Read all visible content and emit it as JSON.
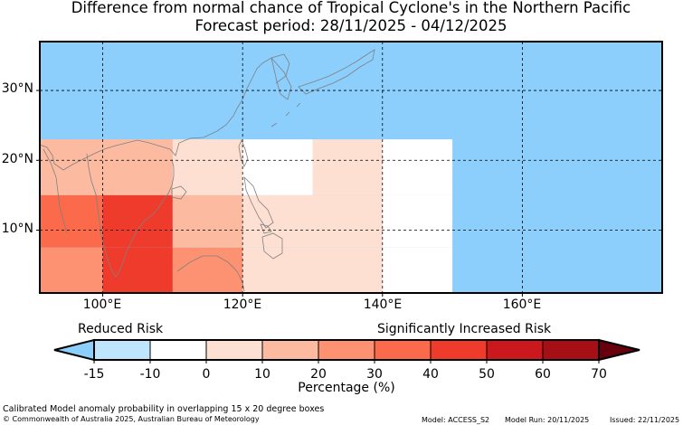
{
  "title": {
    "line1": "Difference from normal chance of Tropical Cyclone's in the Northern Pacific",
    "line2": "Forecast period: 28/11/2025 - 04/12/2025"
  },
  "map": {
    "lon_range": [
      91,
      180
    ],
    "lat_range": [
      1,
      37
    ],
    "y_labels": [
      "30°N",
      "20°N",
      "10°N"
    ],
    "x_labels": [
      "100°E",
      "120°E",
      "140°E",
      "160°E"
    ],
    "background_color": "#8ccffd",
    "cells": [
      {
        "lon": [
          91,
          110
        ],
        "lat": [
          15,
          23
        ],
        "value": 15
      },
      {
        "lon": [
          110,
          120
        ],
        "lat": [
          15,
          23
        ],
        "value": 0
      },
      {
        "lon": [
          120,
          130
        ],
        "lat": [
          15,
          23
        ],
        "value": -10
      },
      {
        "lon": [
          130,
          140
        ],
        "lat": [
          15,
          23
        ],
        "value": 0
      },
      {
        "lon": [
          140,
          150
        ],
        "lat": [
          15,
          23
        ],
        "value": -10
      },
      {
        "lon": [
          91,
          100
        ],
        "lat": [
          7.5,
          15
        ],
        "value": 35
      },
      {
        "lon": [
          100,
          110
        ],
        "lat": [
          7.5,
          15
        ],
        "value": 45
      },
      {
        "lon": [
          110,
          120
        ],
        "lat": [
          7.5,
          15
        ],
        "value": 15
      },
      {
        "lon": [
          120,
          140
        ],
        "lat": [
          7.5,
          15
        ],
        "value": 0
      },
      {
        "lon": [
          140,
          150
        ],
        "lat": [
          7.5,
          15
        ],
        "value": -10
      },
      {
        "lon": [
          91,
          100
        ],
        "lat": [
          1,
          7.5
        ],
        "value": 25
      },
      {
        "lon": [
          100,
          110
        ],
        "lat": [
          1,
          7.5
        ],
        "value": 45
      },
      {
        "lon": [
          110,
          120
        ],
        "lat": [
          1,
          7.5
        ],
        "value": 25
      },
      {
        "lon": [
          120,
          140
        ],
        "lat": [
          1,
          7.5
        ],
        "value": 0
      },
      {
        "lon": [
          140,
          150
        ],
        "lat": [
          1,
          7.5
        ],
        "value": -10
      }
    ]
  },
  "legend": {
    "reduced_label": "Reduced Risk",
    "increased_label": "Significantly Increased Risk",
    "axis_label": "Percentage (%)",
    "ticks": [
      "-15",
      "-10",
      "0",
      "10",
      "20",
      "30",
      "40",
      "50",
      "60",
      "70"
    ],
    "colors": [
      "#8ccffd",
      "#bfe5fd",
      "#ffffff",
      "#fee0d3",
      "#fcbba1",
      "#fc9272",
      "#fb6a4a",
      "#ef3b2c",
      "#cb181d",
      "#a50f15",
      "#67000d"
    ]
  },
  "footer": {
    "note": "Calibrated Model anomaly probability in overlapping 15 x 20 degree boxes",
    "copyright": "© Commonwealth of Australia 2025, Australian Bureau of Meteorology",
    "model": "Model: ACCESS_S2",
    "model_run": "Model Run: 20/11/2025",
    "issued": "Issued: 22/11/2025"
  }
}
